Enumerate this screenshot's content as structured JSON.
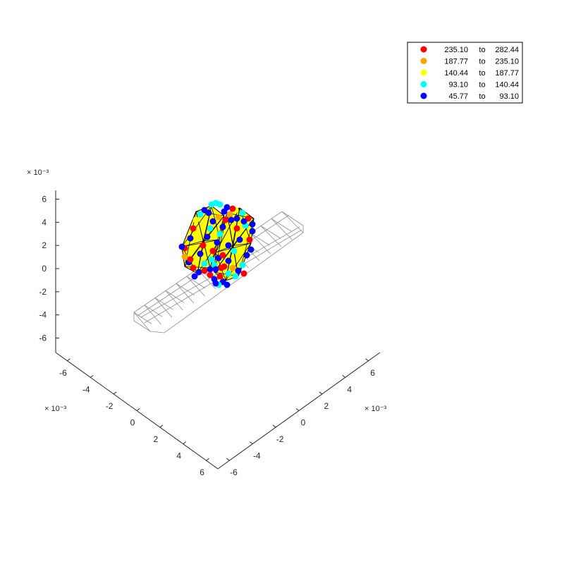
{
  "chart_data": {
    "type": "scatter",
    "title": "",
    "exponent_label": "× 10⁻³",
    "z_axis": {
      "ticks": [
        6,
        4,
        2,
        0,
        -2,
        -4,
        -6
      ],
      "tick_labels": [
        "6",
        "4",
        "2",
        "0",
        "-2",
        "-4",
        "-6"
      ],
      "exponent": "× 10⁻³"
    },
    "y_axis": {
      "ticks": [
        -6,
        -4,
        -2,
        0,
        2,
        4,
        6
      ],
      "tick_labels": [
        "-6",
        "-4",
        "-2",
        "0",
        "2",
        "4",
        "6"
      ],
      "exponent": "× 10⁻³"
    },
    "x_axis": {
      "ticks": [
        -6,
        -4,
        -2,
        0,
        2,
        4,
        6
      ],
      "tick_labels": [
        "-6",
        "-4",
        "-2",
        "0",
        "2",
        "4",
        "6"
      ],
      "exponent": "× 10⁻³"
    },
    "legend": {
      "placement": "top-right",
      "entries": [
        {
          "lo": "235.10",
          "to": "to",
          "hi": "282.44",
          "color": "#ff0000"
        },
        {
          "lo": "187.77",
          "to": "to",
          "hi": "235.10",
          "color": "#ffa500"
        },
        {
          "lo": "140.44",
          "to": "to",
          "hi": "187.77",
          "color": "#ffff00"
        },
        {
          "lo": "93.10",
          "to": "to",
          "hi": "140.44",
          "color": "#00ffff"
        },
        {
          "lo": "45.77",
          "to": "to",
          "hi": "93.10",
          "color": "#0000ff"
        }
      ]
    }
  }
}
